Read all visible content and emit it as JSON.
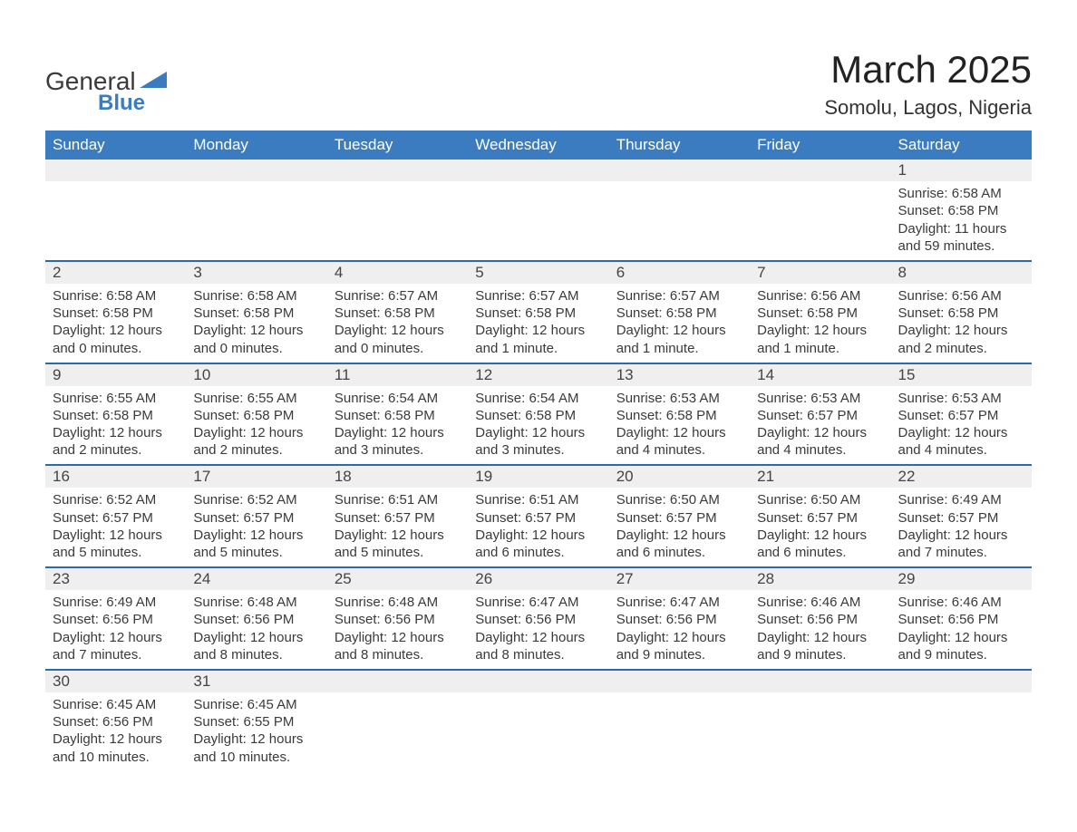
{
  "logo": {
    "text_top": "General",
    "text_bottom": "Blue",
    "brand_color": "#3b7bbf"
  },
  "title": {
    "main": "March 2025",
    "sub": "Somolu, Lagos, Nigeria"
  },
  "colors": {
    "header_bg": "#3b7bbf",
    "header_text": "#ffffff",
    "row_divider": "#2f6aa8",
    "daynum_bg": "#efefef",
    "text": "#3a3a3a",
    "page_bg": "#ffffff"
  },
  "calendar": {
    "type": "table",
    "columns": [
      "Sunday",
      "Monday",
      "Tuesday",
      "Wednesday",
      "Thursday",
      "Friday",
      "Saturday"
    ],
    "first_weekday_index": 6,
    "days": [
      {
        "n": 1,
        "sunrise": "6:58 AM",
        "sunset": "6:58 PM",
        "daylight": "11 hours and 59 minutes."
      },
      {
        "n": 2,
        "sunrise": "6:58 AM",
        "sunset": "6:58 PM",
        "daylight": "12 hours and 0 minutes."
      },
      {
        "n": 3,
        "sunrise": "6:58 AM",
        "sunset": "6:58 PM",
        "daylight": "12 hours and 0 minutes."
      },
      {
        "n": 4,
        "sunrise": "6:57 AM",
        "sunset": "6:58 PM",
        "daylight": "12 hours and 0 minutes."
      },
      {
        "n": 5,
        "sunrise": "6:57 AM",
        "sunset": "6:58 PM",
        "daylight": "12 hours and 1 minute."
      },
      {
        "n": 6,
        "sunrise": "6:57 AM",
        "sunset": "6:58 PM",
        "daylight": "12 hours and 1 minute."
      },
      {
        "n": 7,
        "sunrise": "6:56 AM",
        "sunset": "6:58 PM",
        "daylight": "12 hours and 1 minute."
      },
      {
        "n": 8,
        "sunrise": "6:56 AM",
        "sunset": "6:58 PM",
        "daylight": "12 hours and 2 minutes."
      },
      {
        "n": 9,
        "sunrise": "6:55 AM",
        "sunset": "6:58 PM",
        "daylight": "12 hours and 2 minutes."
      },
      {
        "n": 10,
        "sunrise": "6:55 AM",
        "sunset": "6:58 PM",
        "daylight": "12 hours and 2 minutes."
      },
      {
        "n": 11,
        "sunrise": "6:54 AM",
        "sunset": "6:58 PM",
        "daylight": "12 hours and 3 minutes."
      },
      {
        "n": 12,
        "sunrise": "6:54 AM",
        "sunset": "6:58 PM",
        "daylight": "12 hours and 3 minutes."
      },
      {
        "n": 13,
        "sunrise": "6:53 AM",
        "sunset": "6:58 PM",
        "daylight": "12 hours and 4 minutes."
      },
      {
        "n": 14,
        "sunrise": "6:53 AM",
        "sunset": "6:57 PM",
        "daylight": "12 hours and 4 minutes."
      },
      {
        "n": 15,
        "sunrise": "6:53 AM",
        "sunset": "6:57 PM",
        "daylight": "12 hours and 4 minutes."
      },
      {
        "n": 16,
        "sunrise": "6:52 AM",
        "sunset": "6:57 PM",
        "daylight": "12 hours and 5 minutes."
      },
      {
        "n": 17,
        "sunrise": "6:52 AM",
        "sunset": "6:57 PM",
        "daylight": "12 hours and 5 minutes."
      },
      {
        "n": 18,
        "sunrise": "6:51 AM",
        "sunset": "6:57 PM",
        "daylight": "12 hours and 5 minutes."
      },
      {
        "n": 19,
        "sunrise": "6:51 AM",
        "sunset": "6:57 PM",
        "daylight": "12 hours and 6 minutes."
      },
      {
        "n": 20,
        "sunrise": "6:50 AM",
        "sunset": "6:57 PM",
        "daylight": "12 hours and 6 minutes."
      },
      {
        "n": 21,
        "sunrise": "6:50 AM",
        "sunset": "6:57 PM",
        "daylight": "12 hours and 6 minutes."
      },
      {
        "n": 22,
        "sunrise": "6:49 AM",
        "sunset": "6:57 PM",
        "daylight": "12 hours and 7 minutes."
      },
      {
        "n": 23,
        "sunrise": "6:49 AM",
        "sunset": "6:56 PM",
        "daylight": "12 hours and 7 minutes."
      },
      {
        "n": 24,
        "sunrise": "6:48 AM",
        "sunset": "6:56 PM",
        "daylight": "12 hours and 8 minutes."
      },
      {
        "n": 25,
        "sunrise": "6:48 AM",
        "sunset": "6:56 PM",
        "daylight": "12 hours and 8 minutes."
      },
      {
        "n": 26,
        "sunrise": "6:47 AM",
        "sunset": "6:56 PM",
        "daylight": "12 hours and 8 minutes."
      },
      {
        "n": 27,
        "sunrise": "6:47 AM",
        "sunset": "6:56 PM",
        "daylight": "12 hours and 9 minutes."
      },
      {
        "n": 28,
        "sunrise": "6:46 AM",
        "sunset": "6:56 PM",
        "daylight": "12 hours and 9 minutes."
      },
      {
        "n": 29,
        "sunrise": "6:46 AM",
        "sunset": "6:56 PM",
        "daylight": "12 hours and 9 minutes."
      },
      {
        "n": 30,
        "sunrise": "6:45 AM",
        "sunset": "6:56 PM",
        "daylight": "12 hours and 10 minutes."
      },
      {
        "n": 31,
        "sunrise": "6:45 AM",
        "sunset": "6:55 PM",
        "daylight": "12 hours and 10 minutes."
      }
    ],
    "labels": {
      "sunrise_prefix": "Sunrise: ",
      "sunset_prefix": "Sunset: ",
      "daylight_prefix": "Daylight: "
    }
  }
}
